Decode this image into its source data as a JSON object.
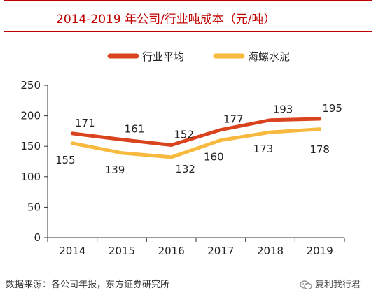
{
  "header": {
    "title": "2014-2019 年公司/行业吨成本（元/吨）"
  },
  "chart_data": {
    "type": "line",
    "title": "2014-2019 年公司/行业吨成本（元/吨）",
    "xlabel": "",
    "ylabel": "",
    "categories": [
      "2014",
      "2015",
      "2016",
      "2017",
      "2018",
      "2019"
    ],
    "series": [
      {
        "name": "行业平均",
        "values": [
          171,
          161,
          152,
          177,
          193,
          195
        ],
        "color": "#d9441f"
      },
      {
        "name": "海螺水泥",
        "values": [
          155,
          139,
          132,
          160,
          173,
          178
        ],
        "color": "#f7b93e"
      }
    ],
    "ylim": [
      0,
      250
    ],
    "yticks": [
      0,
      50,
      100,
      150,
      200,
      250
    ],
    "grid": false,
    "legend_position": "top-right"
  },
  "footer": {
    "source": "数据来源：各公司年报，东方证券研究所",
    "watermark": "复利我行君",
    "watermark_icon": "wechat-icon"
  }
}
